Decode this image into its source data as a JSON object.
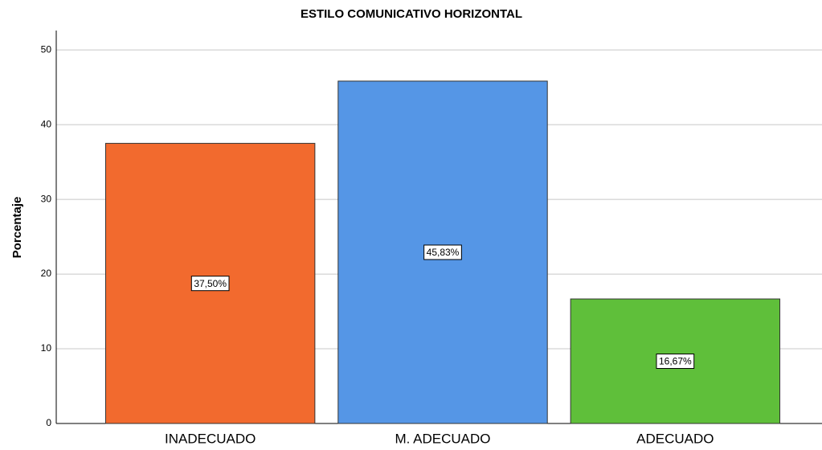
{
  "chart_data": {
    "type": "bar",
    "title": "ESTILO COMUNICATIVO HORIZONTAL",
    "y_label": "Porcentaje",
    "categories": [
      "INADECUADO",
      "M. ADECUADO",
      "ADECUADO"
    ],
    "values": [
      37.5,
      45.83,
      16.67
    ],
    "value_labels": [
      "37,50%",
      "45,83%",
      "16,67%"
    ],
    "colors": [
      "#f26a2e",
      "#5596e6",
      "#5fbf3a"
    ],
    "ylim": [
      0,
      52.6
    ],
    "yticks": [
      0,
      10,
      20,
      30,
      40,
      50
    ],
    "grid": true
  }
}
